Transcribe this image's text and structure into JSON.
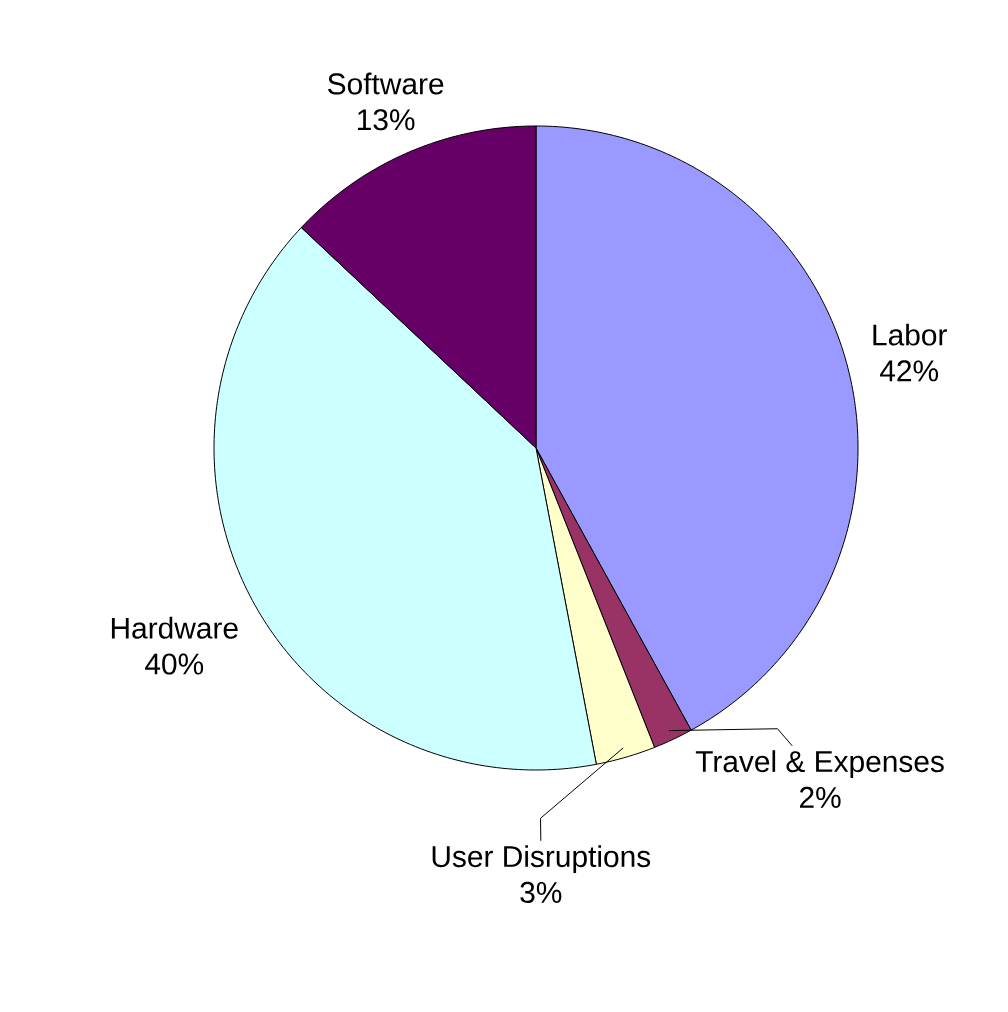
{
  "chart_data": {
    "type": "pie",
    "categories": [
      "Labor",
      "Travel & Expenses",
      "User Disruptions",
      "Hardware",
      "Software"
    ],
    "values": [
      42,
      2,
      3,
      40,
      13
    ],
    "value_labels": [
      "42%",
      "2%",
      "3%",
      "40%",
      "13%"
    ],
    "colors": [
      "#9999ff",
      "#993366",
      "#ffffcc",
      "#ccffff",
      "#660066"
    ]
  }
}
